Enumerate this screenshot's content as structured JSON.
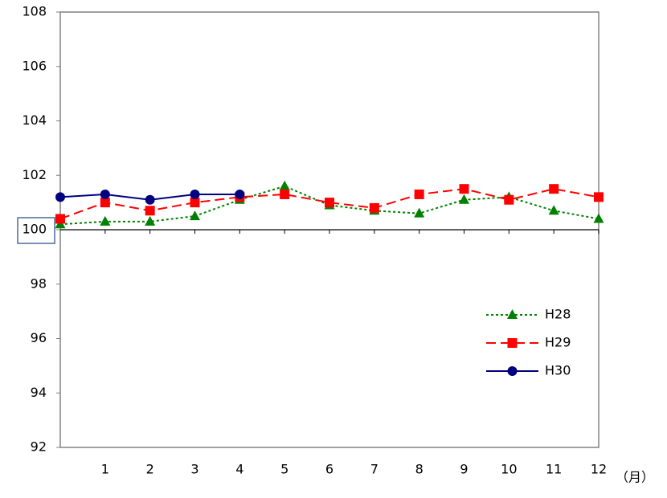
{
  "chart_data": {
    "type": "line",
    "x": [
      0,
      1,
      2,
      3,
      4,
      5,
      6,
      7,
      8,
      9,
      10,
      11,
      12
    ],
    "xlim": [
      0,
      12
    ],
    "xticks": [
      1,
      2,
      3,
      4,
      5,
      6,
      7,
      8,
      9,
      10,
      11,
      12
    ],
    "x_label": "（月）",
    "ylim": [
      92,
      108
    ],
    "yticks": [
      92,
      94,
      96,
      98,
      100,
      102,
      104,
      106,
      108
    ],
    "baseline": 100,
    "grid": false,
    "legend": "lower right",
    "series": [
      {
        "name": "H28",
        "color": "#008000",
        "marker": "triangle",
        "line_style": "dotted",
        "values": [
          100.2,
          100.3,
          100.3,
          100.5,
          101.1,
          101.6,
          100.9,
          100.7,
          100.6,
          101.1,
          101.2,
          100.7,
          100.4
        ]
      },
      {
        "name": "H29",
        "color": "#ff0000",
        "marker": "square",
        "line_style": "dashed",
        "values": [
          100.4,
          101.0,
          100.7,
          101.0,
          101.2,
          101.3,
          101.0,
          100.8,
          101.3,
          101.5,
          101.1,
          101.5,
          101.2
        ]
      },
      {
        "name": "H30",
        "color": "#000080",
        "marker": "circle",
        "line_style": "solid",
        "values": [
          101.2,
          101.3,
          101.1,
          101.3,
          101.3,
          null,
          null,
          null,
          null,
          null,
          null,
          null,
          null
        ]
      }
    ]
  }
}
